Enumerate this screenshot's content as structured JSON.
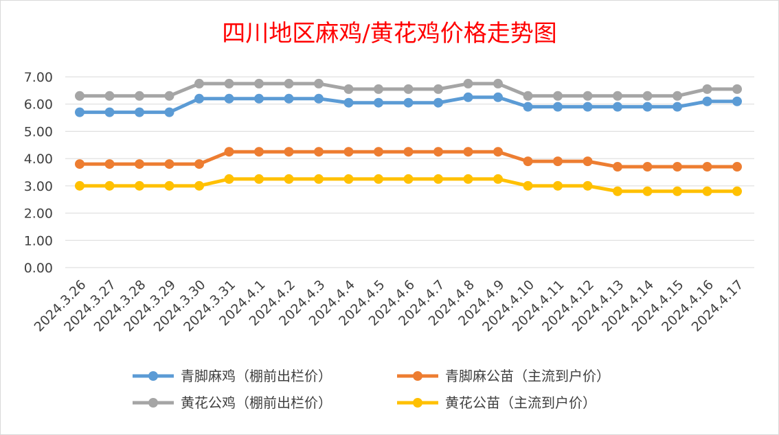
{
  "chart_data": {
    "type": "line",
    "title": "四川地区麻鸡/黄花鸡价格走势图",
    "title_color": "#ff0000",
    "categories": [
      "2024.3.26",
      "2024.3.27",
      "2024.3.28",
      "2024.3.29",
      "2024.3.30",
      "2024.3.31",
      "2024.4.1",
      "2024.4.2",
      "2024.4.3",
      "2024.4.4",
      "2024.4.5",
      "2024.4.6",
      "2024.4.7",
      "2024.4.8",
      "2024.4.9",
      "2024.4.10",
      "2024.4.11",
      "2024.4.12",
      "2024.4.13",
      "2024.4.14",
      "2024.4.15",
      "2024.4.16",
      "2024.4.17"
    ],
    "y_ticks": [
      "0.00",
      "1.00",
      "2.00",
      "3.00",
      "4.00",
      "5.00",
      "6.00",
      "7.00"
    ],
    "ylim": [
      0,
      7
    ],
    "grid": true,
    "legend_position": "bottom",
    "series": [
      {
        "name": "青脚麻鸡（棚前出栏价）",
        "color": "#5b9bd5",
        "values": [
          5.7,
          5.7,
          5.7,
          5.7,
          6.2,
          6.2,
          6.2,
          6.2,
          6.2,
          6.05,
          6.05,
          6.05,
          6.05,
          6.25,
          6.25,
          5.9,
          5.9,
          5.9,
          5.9,
          5.9,
          5.9,
          6.1,
          6.1
        ]
      },
      {
        "name": "青脚麻公苗（主流到户价）",
        "color": "#ed7d31",
        "values": [
          3.8,
          3.8,
          3.8,
          3.8,
          3.8,
          4.25,
          4.25,
          4.25,
          4.25,
          4.25,
          4.25,
          4.25,
          4.25,
          4.25,
          4.25,
          3.9,
          3.9,
          3.9,
          3.7,
          3.7,
          3.7,
          3.7,
          3.7
        ]
      },
      {
        "name": "黄花公鸡（棚前出栏价）",
        "color": "#a5a5a5",
        "values": [
          6.3,
          6.3,
          6.3,
          6.3,
          6.75,
          6.75,
          6.75,
          6.75,
          6.75,
          6.55,
          6.55,
          6.55,
          6.55,
          6.75,
          6.75,
          6.3,
          6.3,
          6.3,
          6.3,
          6.3,
          6.3,
          6.55,
          6.55
        ]
      },
      {
        "name": "黄花公苗（主流到户价）",
        "color": "#ffc000",
        "values": [
          3.0,
          3.0,
          3.0,
          3.0,
          3.0,
          3.25,
          3.25,
          3.25,
          3.25,
          3.25,
          3.25,
          3.25,
          3.25,
          3.25,
          3.25,
          3.0,
          3.0,
          3.0,
          2.8,
          2.8,
          2.8,
          2.8,
          2.8
        ]
      }
    ]
  }
}
